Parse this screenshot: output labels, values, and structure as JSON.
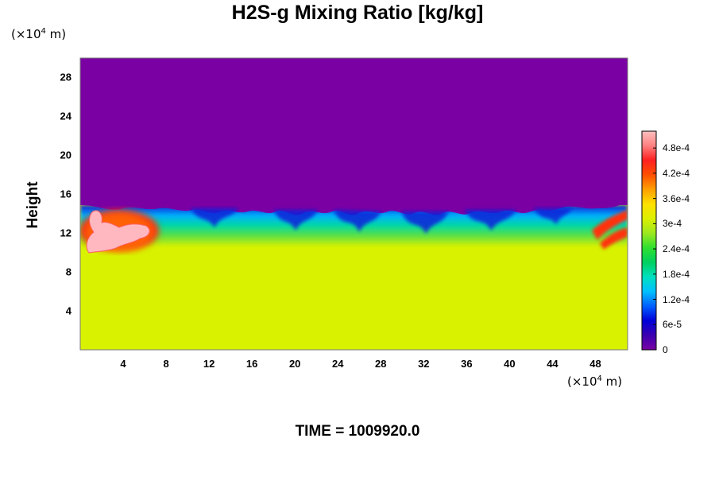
{
  "chart_data": {
    "type": "heatmap",
    "title": "H2S-g Mixing Ratio [kg/kg]",
    "ylabel": "Height",
    "x_unit": "(×10^4 m)",
    "y_unit": "(×10^4 m)",
    "x_ticks": [
      4,
      8,
      12,
      16,
      20,
      24,
      28,
      32,
      36,
      40,
      44,
      48
    ],
    "y_ticks": [
      4,
      8,
      12,
      16,
      20,
      24,
      28
    ],
    "xlim": [
      0,
      51
    ],
    "ylim": [
      0,
      30
    ],
    "colorbar": {
      "ticks": [
        "0",
        "6e-5",
        "1.2e-4",
        "1.8e-4",
        "2.4e-4",
        "3e-4",
        "3.6e-4",
        "4.2e-4",
        "4.8e-4"
      ],
      "tick_values": [
        0,
        6e-05,
        0.00012,
        0.00018,
        0.00024,
        0.0003,
        0.00036,
        0.00042,
        0.00048
      ],
      "range": [
        0,
        0.00052
      ],
      "colors": [
        "#7a00a4",
        "#3a00b0",
        "#0000d8",
        "#0060ff",
        "#00c0ff",
        "#00e0c0",
        "#00d060",
        "#30e030",
        "#9ce820",
        "#dcf000",
        "#ffe000",
        "#ffa000",
        "#ff5000",
        "#ff2020",
        "#ff8080",
        "#ffc0c0"
      ]
    },
    "fields": {
      "upper_value": 0,
      "lower_value": 0.00035,
      "mixing_layer_top": 15,
      "mixing_layer_bottom": 11,
      "high_concentration_regions": [
        {
          "x_range": [
            0,
            7
          ],
          "y_range": [
            10,
            15
          ],
          "max_value": 0.00052
        },
        {
          "x_range": [
            48,
            51
          ],
          "y_range": [
            10.5,
            14
          ],
          "max_value": 0.00048
        }
      ]
    }
  },
  "time_label": "TIME = 1009920.0"
}
